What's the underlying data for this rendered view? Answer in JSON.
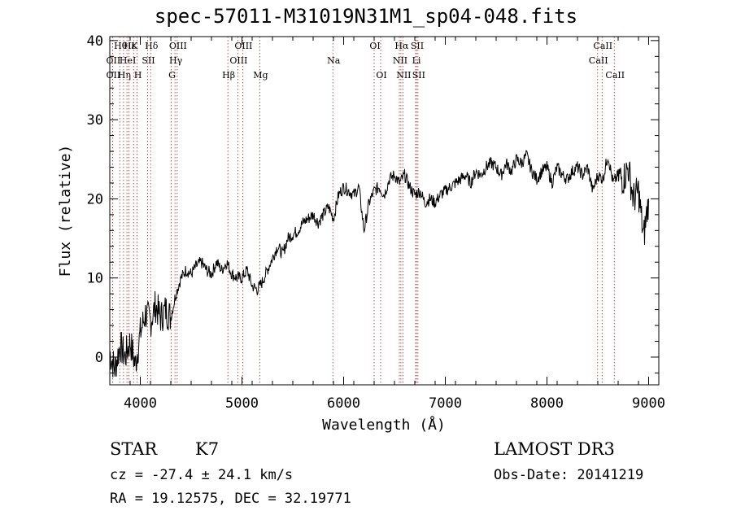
{
  "chart_data": {
    "type": "line",
    "title": "spec-57011-M31019N31M1_sp04-048.fits",
    "xlabel": "Wavelength (Å)",
    "ylabel": "Flux (relative)",
    "xlim": [
      3700,
      9100
    ],
    "ylim": [
      -3.5,
      40.5
    ],
    "xticks": [
      4000,
      5000,
      6000,
      7000,
      8000,
      9000
    ],
    "yticks": [
      0,
      10,
      20,
      30,
      40
    ],
    "grid": false,
    "series": [
      {
        "name": "spectrum",
        "x": [
          3700,
          3750,
          3800,
          3850,
          3900,
          3950,
          4000,
          4050,
          4100,
          4150,
          4200,
          4250,
          4300,
          4350,
          4400,
          4450,
          4500,
          4550,
          4600,
          4650,
          4700,
          4750,
          4800,
          4850,
          4900,
          4950,
          5000,
          5050,
          5100,
          5150,
          5200,
          5250,
          5300,
          5350,
          5400,
          5450,
          5500,
          5550,
          5600,
          5650,
          5700,
          5750,
          5800,
          5850,
          5900,
          5950,
          6000,
          6050,
          6100,
          6150,
          6200,
          6250,
          6300,
          6350,
          6400,
          6450,
          6500,
          6550,
          6600,
          6650,
          6700,
          6750,
          6800,
          6850,
          6900,
          6950,
          7000,
          7050,
          7100,
          7150,
          7200,
          7250,
          7300,
          7350,
          7400,
          7450,
          7500,
          7550,
          7600,
          7650,
          7700,
          7750,
          7800,
          7850,
          7900,
          7950,
          8000,
          8050,
          8100,
          8150,
          8200,
          8250,
          8300,
          8350,
          8400,
          8450,
          8500,
          8550,
          8600,
          8650,
          8700,
          8750,
          8800,
          8850,
          8900,
          8950,
          9000
        ],
        "y": [
          0.5,
          -1.5,
          1.5,
          0,
          2,
          -1,
          3,
          5.5,
          4.5,
          6.5,
          5,
          6,
          5,
          8,
          10,
          11,
          10.5,
          11.5,
          12,
          11,
          10.5,
          12,
          11,
          12,
          10.5,
          10,
          10,
          11,
          9,
          8.5,
          9.5,
          11,
          12.5,
          14,
          13,
          15,
          15.5,
          16,
          17,
          17.5,
          18,
          17,
          18,
          19,
          17.5,
          20.5,
          21.5,
          21,
          20.5,
          21.5,
          16,
          19.5,
          21,
          21.5,
          20.5,
          22.5,
          23,
          22,
          23,
          21.5,
          20.5,
          21,
          19.5,
          20,
          19.5,
          20.5,
          21,
          21.5,
          22,
          22.5,
          23,
          22,
          23.5,
          23,
          24,
          24.5,
          24,
          23,
          24.5,
          23.5,
          25,
          24.5,
          25.5,
          23.5,
          22.5,
          23.5,
          24,
          22,
          24,
          23,
          22.5,
          23.5,
          24,
          23,
          24,
          21,
          23,
          22.5,
          25.5,
          22,
          23,
          22.5,
          24,
          20,
          21,
          15,
          20
        ]
      }
    ],
    "annotations": {
      "Hδ": 4102,
      "Hγ": 4341,
      "Hβ": 4861,
      "Hα": 6563,
      "K": 3934,
      "H": 3968,
      "G": 4304,
      "Mg": 5175,
      "Na": 5894,
      "OI": [
        6300,
        6364
      ],
      "OIII": [
        4363,
        4959,
        5007
      ],
      "NII": [
        6548,
        6583
      ],
      "SII": [
        6716,
        6731
      ],
      "CaII": [
        8498,
        8542,
        8662
      ],
      "Li": 6708
    }
  },
  "info": {
    "class": "STAR",
    "subclass": "K7",
    "survey": "LAMOST DR3",
    "cz": "cz = -27.4 ± 24.1 km/s",
    "obsdate": "Obs-Date: 20141219",
    "radec": "RA =  19.12575, DEC =  32.19771"
  },
  "lines": [
    {
      "wl": 3727,
      "label": "OII",
      "row": 2
    },
    {
      "wl": 3727,
      "label": "OII",
      "row": 3
    },
    {
      "wl": 3798,
      "label": "Hθ",
      "row": 1
    },
    {
      "wl": 3835,
      "label": "Hη",
      "row": 3
    },
    {
      "wl": 3869,
      "label": "HeI",
      "row": 2
    },
    {
      "wl": 3889,
      "label": "Hε",
      "row": 1
    },
    {
      "wl": 3934,
      "label": "K",
      "row": 1
    },
    {
      "wl": 3968,
      "label": "H",
      "row": 3
    },
    {
      "wl": 4072,
      "label": "SII",
      "row": 2
    },
    {
      "wl": 4102,
      "label": "Hδ",
      "row": 1
    },
    {
      "wl": 4304,
      "label": "G",
      "row": 3
    },
    {
      "wl": 4341,
      "label": "Hγ",
      "row": 2
    },
    {
      "wl": 4363,
      "label": "OIII",
      "row": 1
    },
    {
      "wl": 4861,
      "label": "Hβ",
      "row": 3
    },
    {
      "wl": 4959,
      "label": "OIII",
      "row": 2
    },
    {
      "wl": 5007,
      "label": "OIII",
      "row": 1
    },
    {
      "wl": 5175,
      "label": "Mg",
      "row": 3
    },
    {
      "wl": 5894,
      "label": "Na",
      "row": 2
    },
    {
      "wl": 6300,
      "label": "OI",
      "row": 1
    },
    {
      "wl": 6364,
      "label": "OI",
      "row": 3
    },
    {
      "wl": 6548,
      "label": "NII",
      "row": 2
    },
    {
      "wl": 6563,
      "label": "Hα",
      "row": 1
    },
    {
      "wl": 6583,
      "label": "NII",
      "row": 3
    },
    {
      "wl": 6708,
      "label": "Li",
      "row": 2
    },
    {
      "wl": 6716,
      "label": "SII",
      "row": 1
    },
    {
      "wl": 6731,
      "label": "SII",
      "row": 3
    },
    {
      "wl": 8498,
      "label": "CaII",
      "row": 2
    },
    {
      "wl": 8542,
      "label": "CaII",
      "row": 1
    },
    {
      "wl": 8662,
      "label": "CaII",
      "row": 3
    }
  ]
}
